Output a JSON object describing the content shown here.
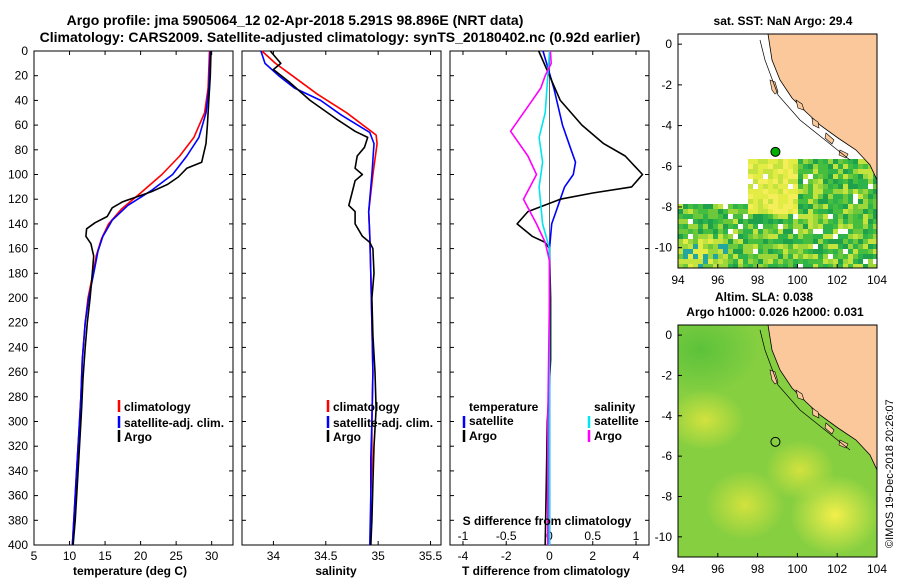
{
  "title": {
    "line1": "Argo profile: jma 5905064_12 02-Apr-2018 5.291S 98.896E (NRT data)",
    "line2": "Climatology: CARS2009. Satellite-adjusted climatology: synTS_20180402.nc (0.92d earlier)"
  },
  "colors": {
    "climatology": "#ff0000",
    "satellite": "#0000ff",
    "argo": "#000000",
    "sal_satellite": "#00e5ee",
    "sal_argo": "#ff00ff",
    "land": "#fbc89b"
  },
  "depth_ticks": [
    0,
    20,
    40,
    60,
    80,
    100,
    120,
    140,
    160,
    180,
    200,
    220,
    240,
    260,
    280,
    300,
    320,
    340,
    360,
    380,
    400
  ],
  "legend_labels": {
    "climatology": "climatology",
    "satellite": "satellite-adj. clim.",
    "argo": "Argo"
  },
  "chart_data": [
    {
      "id": "temperature",
      "type": "line",
      "xlabel": "temperature (deg C)",
      "xlim": [
        5,
        33
      ],
      "ylim": [
        0,
        400
      ],
      "xticks": [
        5,
        10,
        15,
        20,
        25,
        30
      ],
      "series": [
        {
          "name": "climatology",
          "color": "#ff0000",
          "points": [
            [
              29.7,
              0
            ],
            [
              29.5,
              30
            ],
            [
              29,
              50
            ],
            [
              27.5,
              70
            ],
            [
              25.5,
              85
            ],
            [
              23,
              100
            ],
            [
              20,
              115
            ],
            [
              17.3,
              128
            ],
            [
              15.5,
              140
            ],
            [
              14.5,
              152
            ],
            [
              13.8,
              165
            ],
            [
              13.3,
              180
            ],
            [
              12.6,
              200
            ],
            [
              12.2,
              220
            ],
            [
              11.8,
              250
            ],
            [
              11.6,
              280
            ],
            [
              11.3,
              310
            ],
            [
              11,
              340
            ],
            [
              10.7,
              370
            ],
            [
              10.4,
              400
            ]
          ]
        },
        {
          "name": "satellite-adj. clim.",
          "color": "#0000ff",
          "points": [
            [
              29.8,
              0
            ],
            [
              29.6,
              30
            ],
            [
              29.2,
              50
            ],
            [
              28.2,
              70
            ],
            [
              26.5,
              85
            ],
            [
              24.5,
              100
            ],
            [
              21.5,
              113
            ],
            [
              18.2,
              125
            ],
            [
              16,
              137
            ],
            [
              14.7,
              150
            ],
            [
              14,
              162
            ],
            [
              13.4,
              180
            ],
            [
              12.7,
              200
            ],
            [
              12.2,
              220
            ],
            [
              11.8,
              250
            ],
            [
              11.6,
              280
            ],
            [
              11.3,
              310
            ],
            [
              11,
              340
            ],
            [
              10.7,
              370
            ],
            [
              10.4,
              400
            ]
          ]
        },
        {
          "name": "Argo",
          "color": "#000000",
          "points": [
            [
              29.9,
              0
            ],
            [
              29.8,
              20
            ],
            [
              29.6,
              40
            ],
            [
              29.4,
              60
            ],
            [
              29.2,
              75
            ],
            [
              28.6,
              90
            ],
            [
              26.5,
              95
            ],
            [
              25.3,
              102
            ],
            [
              23.8,
              108
            ],
            [
              21.5,
              114
            ],
            [
              19.5,
              118
            ],
            [
              17.5,
              122
            ],
            [
              16,
              127
            ],
            [
              15.3,
              134
            ],
            [
              13.6,
              139
            ],
            [
              12.4,
              144
            ],
            [
              12.3,
              150
            ],
            [
              13,
              156
            ],
            [
              13.4,
              166
            ],
            [
              13.2,
              180
            ],
            [
              12.9,
              200
            ],
            [
              12.5,
              220
            ],
            [
              12.2,
              240
            ],
            [
              11.9,
              265
            ],
            [
              11.7,
              290
            ],
            [
              11.4,
              320
            ],
            [
              11.1,
              350
            ],
            [
              10.8,
              380
            ],
            [
              10.5,
              400
            ]
          ]
        }
      ]
    },
    {
      "id": "salinity",
      "type": "line",
      "xlabel": "salinity",
      "xlim": [
        33.7,
        35.6
      ],
      "ylim": [
        0,
        400
      ],
      "xticks": [
        34,
        34.5,
        35,
        35.5
      ],
      "series": [
        {
          "name": "climatology",
          "color": "#ff0000",
          "points": [
            [
              33.89,
              0
            ],
            [
              34.02,
              10
            ],
            [
              34.18,
              20
            ],
            [
              34.42,
              35
            ],
            [
              34.7,
              50
            ],
            [
              34.98,
              68
            ],
            [
              34.99,
              75
            ],
            [
              34.95,
              100
            ],
            [
              34.91,
              130
            ],
            [
              34.92,
              150
            ],
            [
              34.93,
              180
            ],
            [
              34.94,
              220
            ],
            [
              34.95,
              260
            ],
            [
              34.94,
              300
            ],
            [
              34.94,
              330
            ],
            [
              34.93,
              360
            ],
            [
              34.93,
              400
            ]
          ]
        },
        {
          "name": "satellite-adj. clim.",
          "color": "#0000ff",
          "points": [
            [
              33.88,
              0
            ],
            [
              33.92,
              10
            ],
            [
              34.05,
              20
            ],
            [
              34.2,
              30
            ],
            [
              34.45,
              40
            ],
            [
              34.65,
              52
            ],
            [
              34.92,
              66
            ],
            [
              34.96,
              75
            ],
            [
              34.94,
              100
            ],
            [
              34.91,
              130
            ],
            [
              34.92,
              150
            ],
            [
              34.93,
              180
            ],
            [
              34.94,
              220
            ],
            [
              34.95,
              260
            ],
            [
              34.94,
              300
            ],
            [
              34.93,
              330
            ],
            [
              34.93,
              360
            ],
            [
              34.92,
              400
            ]
          ]
        },
        {
          "name": "Argo",
          "color": "#000000",
          "points": [
            [
              33.97,
              0
            ],
            [
              34.07,
              10
            ],
            [
              34.0,
              15
            ],
            [
              34.15,
              25
            ],
            [
              34.35,
              40
            ],
            [
              34.6,
              55
            ],
            [
              34.78,
              65
            ],
            [
              34.9,
              70
            ],
            [
              34.87,
              78
            ],
            [
              34.8,
              85
            ],
            [
              34.78,
              95
            ],
            [
              34.85,
              100
            ],
            [
              34.78,
              105
            ],
            [
              34.75,
              115
            ],
            [
              34.72,
              125
            ],
            [
              34.78,
              130
            ],
            [
              34.78,
              140
            ],
            [
              34.85,
              150
            ],
            [
              34.92,
              155
            ],
            [
              34.95,
              160
            ],
            [
              34.96,
              180
            ],
            [
              34.94,
              200
            ],
            [
              34.95,
              230
            ],
            [
              34.97,
              260
            ],
            [
              34.98,
              290
            ],
            [
              34.96,
              320
            ],
            [
              34.95,
              350
            ],
            [
              34.94,
              380
            ],
            [
              34.93,
              400
            ]
          ]
        }
      ]
    },
    {
      "id": "difference",
      "type": "line",
      "xlabel": "T difference from climatology",
      "xlabel_top": "S difference from climatology",
      "xlim": [
        -4.6,
        4.6
      ],
      "ylim": [
        0,
        400
      ],
      "xticks": [
        -4,
        -2,
        0,
        2,
        4
      ],
      "xticks_top": [
        -1,
        -0.5,
        0,
        0.5,
        1
      ],
      "xticks_top_labels": [
        "-1",
        "-0.5",
        "0",
        "0.5",
        "1"
      ],
      "legend": {
        "temperature": "temperature",
        "salinity": "salinity",
        "satellite": "satellite",
        "argo": "Argo"
      },
      "series": [
        {
          "name": "temperature satellite",
          "color": "#0000ff",
          "points": [
            [
              -0.3,
              0
            ],
            [
              0.2,
              30
            ],
            [
              0.6,
              60
            ],
            [
              1.0,
              80
            ],
            [
              1.2,
              90
            ],
            [
              1.1,
              100
            ],
            [
              0.7,
              110
            ],
            [
              0.5,
              120
            ],
            [
              0.3,
              130
            ],
            [
              0.1,
              140
            ],
            [
              0.0,
              160
            ],
            [
              0.0,
              200
            ],
            [
              0.0,
              250
            ],
            [
              0.0,
              300
            ],
            [
              0.0,
              350
            ],
            [
              0.0,
              400
            ]
          ]
        },
        {
          "name": "temperature Argo",
          "color": "#000000",
          "points": [
            [
              -0.5,
              0
            ],
            [
              0.0,
              20
            ],
            [
              0.5,
              40
            ],
            [
              1.5,
              60
            ],
            [
              2.5,
              75
            ],
            [
              3.5,
              85
            ],
            [
              4.3,
              100
            ],
            [
              3.8,
              110
            ],
            [
              2.0,
              115
            ],
            [
              0.5,
              120
            ],
            [
              -1.0,
              130
            ],
            [
              -1.5,
              140
            ],
            [
              -0.8,
              150
            ],
            [
              -0.2,
              155
            ],
            [
              0.0,
              160
            ],
            [
              0.05,
              200
            ],
            [
              0.05,
              250
            ],
            [
              -0.1,
              300
            ],
            [
              -0.15,
              350
            ],
            [
              -0.2,
              400
            ]
          ]
        },
        {
          "name": "salinity satellite",
          "color": "#00e5ee",
          "points": [
            [
              0.0,
              0
            ],
            [
              -0.02,
              20
            ],
            [
              -0.05,
              50
            ],
            [
              -0.12,
              70
            ],
            [
              -0.08,
              90
            ],
            [
              -0.12,
              110
            ],
            [
              -0.08,
              140
            ],
            [
              0.0,
              160
            ],
            [
              0.0,
              200
            ],
            [
              0.0,
              250
            ],
            [
              0.0,
              300
            ],
            [
              0.0,
              350
            ],
            [
              0.0,
              400
            ]
          ]
        },
        {
          "name": "salinity Argo",
          "color": "#ff00ff",
          "points": [
            [
              0.01,
              0
            ],
            [
              0.02,
              10
            ],
            [
              -0.05,
              20
            ],
            [
              -0.1,
              30
            ],
            [
              -0.2,
              40
            ],
            [
              -0.35,
              55
            ],
            [
              -0.45,
              65
            ],
            [
              -0.4,
              70
            ],
            [
              -0.25,
              85
            ],
            [
              -0.15,
              100
            ],
            [
              -0.3,
              120
            ],
            [
              -0.15,
              140
            ],
            [
              -0.05,
              155
            ],
            [
              0.0,
              170
            ],
            [
              0.0,
              200
            ],
            [
              -0.01,
              250
            ],
            [
              -0.02,
              300
            ],
            [
              -0.02,
              350
            ],
            [
              -0.02,
              400
            ]
          ]
        }
      ]
    },
    {
      "id": "sst_map",
      "type": "heatmap",
      "title": "sat. SST: NaN Argo: 29.4",
      "xlim": [
        94,
        104
      ],
      "ylim": [
        -11,
        0.5
      ],
      "xticks": [
        94,
        96,
        98,
        100,
        102,
        104
      ],
      "yticks": [
        0,
        -2,
        -4,
        -6,
        -8,
        -10
      ],
      "float_position": [
        98.896,
        -5.291
      ]
    },
    {
      "id": "sla_map",
      "type": "heatmap",
      "title": "Altim. SLA: 0.038",
      "subtitle": "Argo h1000: 0.026 h2000: 0.031",
      "xlim": [
        94,
        104
      ],
      "ylim": [
        -11,
        0.5
      ],
      "xticks": [
        94,
        96,
        98,
        100,
        102,
        104
      ],
      "yticks": [
        0,
        -2,
        -4,
        -6,
        -8,
        -10
      ],
      "float_position": [
        98.896,
        -5.291
      ]
    }
  ],
  "footer": "©IMOS 19-Dec-2018 20:26:07"
}
